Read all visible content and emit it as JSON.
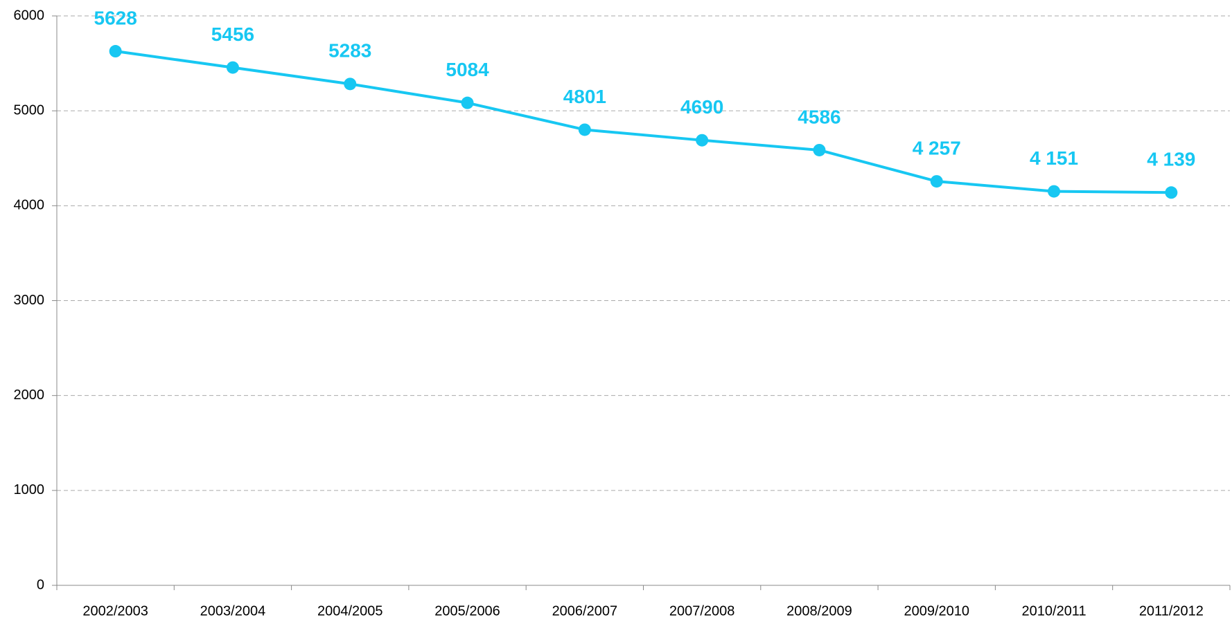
{
  "chart_data": {
    "type": "line",
    "categories": [
      "2002/2003",
      "2003/2004",
      "2004/2005",
      "2005/2006",
      "2006/2007",
      "2007/2008",
      "2008/2009",
      "2009/2010",
      "2010/2011",
      "2011/2012"
    ],
    "values": [
      5628,
      5456,
      5283,
      5084,
      4801,
      4690,
      4586,
      4257,
      4151,
      4139
    ],
    "value_labels": [
      "5628",
      "5456",
      "5283",
      "5084",
      "4801",
      "4690",
      "4586",
      "4 257",
      "4 151",
      "4 139"
    ],
    "color": "#17c7f2",
    "ylim": [
      0,
      6000
    ],
    "yticks": [
      0,
      1000,
      2000,
      3000,
      4000,
      5000,
      6000
    ],
    "grid": true
  }
}
